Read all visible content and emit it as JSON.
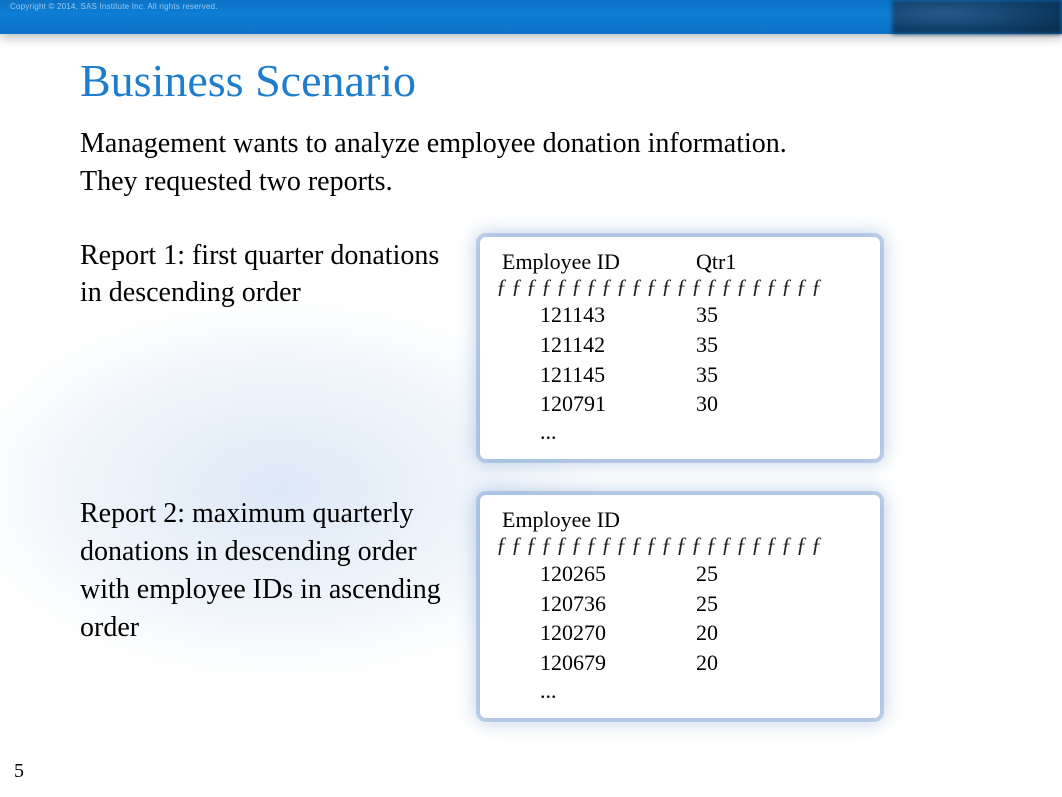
{
  "banner": {
    "copyright": "Copyright © 2014, SAS Institute Inc. All rights reserved.",
    "bg_gradient_from": "#0b74c8",
    "bg_gradient_to": "#0e7dd3"
  },
  "title": {
    "text": "Business Scenario",
    "color": "#1f7dce",
    "fontsize": 46
  },
  "intro": "Management wants to analyze employee donation information. They requested two reports.",
  "body_fontsize": 28,
  "report1": {
    "desc": "Report 1: first quarter donations in descending order",
    "panel": {
      "type": "table",
      "columns": [
        "Employee ID",
        "Qtr1"
      ],
      "rule_char": "ƒ",
      "rule_repeat": 22,
      "rows": [
        [
          "121143",
          "35"
        ],
        [
          "121142",
          "35"
        ],
        [
          "121145",
          "35"
        ],
        [
          "120791",
          "30"
        ]
      ],
      "ellipsis": "...",
      "box_glow_color": "#6b95cd",
      "background_color": "#ffffff",
      "text_color": "#000000",
      "col1_width": 200,
      "col2_width": 100,
      "data_indent": 44,
      "fontsize": 22
    }
  },
  "report2": {
    "desc": "Report 2: maximum quarterly donations in descending order with employee IDs in ascending order",
    "panel": {
      "type": "table",
      "columns": [
        "Employee ID",
        ""
      ],
      "rule_char": "ƒ",
      "rule_repeat": 22,
      "rows": [
        [
          "120265",
          "25"
        ],
        [
          "120736",
          "25"
        ],
        [
          "120270",
          "20"
        ],
        [
          "120679",
          "20"
        ]
      ],
      "ellipsis": "...",
      "box_glow_color": "#6b95cd",
      "background_color": "#ffffff",
      "text_color": "#000000",
      "col1_width": 200,
      "col2_width": 100,
      "data_indent": 44,
      "fontsize": 22
    }
  },
  "page_number": "5",
  "background_cloud_color": "rgba(180,205,235,0.45)"
}
